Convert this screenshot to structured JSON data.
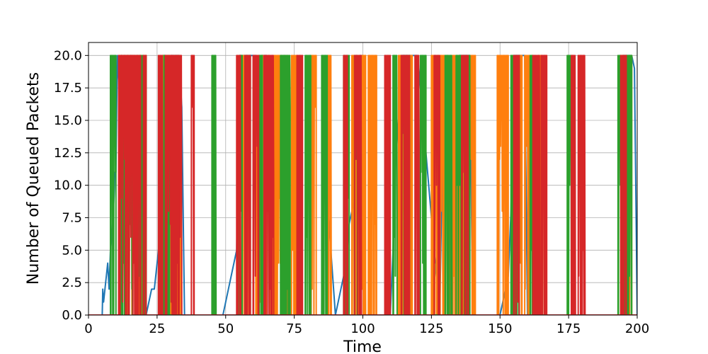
{
  "chart_data": {
    "type": "line",
    "title": "",
    "xlabel": "Time",
    "ylabel": "Number of Queued Packets",
    "xlim": [
      0,
      200
    ],
    "ylim": [
      0,
      21
    ],
    "xticks": [
      0,
      25,
      50,
      75,
      100,
      125,
      150,
      175,
      200
    ],
    "yticks": [
      0.0,
      2.5,
      5.0,
      7.5,
      10.0,
      12.5,
      15.0,
      17.5,
      20.0
    ],
    "xtick_labels": [
      "0",
      "25",
      "50",
      "75",
      "100",
      "125",
      "150",
      "175",
      "200"
    ],
    "ytick_labels": [
      "0.0",
      "2.5",
      "5.0",
      "7.5",
      "10.0",
      "12.5",
      "15.0",
      "17.5",
      "20.0"
    ],
    "grid": true,
    "legend": "none",
    "series": [
      {
        "color": "#1f77b4",
        "x": [
          0,
          5,
          5.2,
          5.5,
          6,
          7,
          7.5,
          8,
          8.5,
          9,
          9.3,
          9.6,
          10,
          10.5,
          11,
          12,
          13,
          14,
          15,
          16,
          17,
          18,
          19,
          20,
          21,
          22,
          23,
          24,
          25,
          25.5,
          26,
          27,
          28,
          29,
          30,
          31,
          32,
          33,
          34,
          35,
          49,
          50,
          51,
          52,
          53,
          54,
          55,
          56,
          57,
          58,
          59,
          60,
          61,
          62,
          63,
          64,
          65,
          66,
          67,
          67.5,
          68,
          85,
          85.3,
          86,
          90,
          91,
          92,
          93,
          94,
          95,
          96,
          97,
          98,
          99,
          100,
          101,
          110,
          111,
          112,
          113,
          114,
          115,
          116,
          117,
          118,
          119,
          120,
          128,
          129,
          130,
          131,
          132,
          133,
          134,
          135,
          136,
          137,
          138,
          139,
          140,
          150,
          151,
          152,
          153,
          154,
          155,
          156,
          157,
          158,
          159,
          160,
          194,
          195,
          196,
          197,
          198,
          199,
          200
        ],
        "y": [
          0,
          0,
          2,
          1,
          2,
          4,
          2,
          5,
          6,
          8,
          9,
          11,
          11,
          20,
          18,
          20,
          15,
          20,
          18,
          20,
          12,
          20,
          0,
          0,
          0,
          1,
          2,
          2,
          4,
          5,
          6,
          20,
          20,
          18,
          20,
          20,
          20,
          20,
          16,
          0,
          0,
          1,
          2,
          3,
          4,
          5,
          20,
          20,
          20,
          20,
          20,
          20,
          20,
          16,
          20,
          20,
          20,
          10,
          11,
          9,
          0,
          0,
          13,
          12,
          0,
          1,
          2,
          3,
          4,
          7,
          8,
          9,
          10,
          20,
          20,
          0,
          0,
          5,
          12,
          15,
          20,
          20,
          20,
          20,
          20,
          20,
          20,
          0,
          12,
          13,
          16,
          17,
          18,
          19,
          20,
          20,
          20,
          20,
          20,
          0,
          0,
          1,
          2,
          3,
          8,
          20,
          20,
          20,
          20,
          20,
          0,
          0,
          20,
          20,
          20,
          20,
          19,
          0
        ]
      },
      {
        "color": "#ff7f0e",
        "bursts": [
          [
            11,
            17
          ],
          [
            18,
            21
          ],
          [
            27,
            33.5
          ],
          [
            55,
            58
          ],
          [
            61,
            66
          ],
          [
            67,
            72.5
          ],
          [
            74,
            77
          ],
          [
            81,
            83
          ],
          [
            87,
            88.5
          ],
          [
            96,
            101
          ],
          [
            102,
            105
          ],
          [
            113,
            118
          ],
          [
            125,
            131
          ],
          [
            132,
            137
          ],
          [
            138,
            141
          ],
          [
            149,
            153
          ],
          [
            157,
            158
          ],
          [
            159,
            162
          ],
          [
            164,
            167
          ],
          [
            194,
            198
          ]
        ],
        "baseline": 0
      },
      {
        "color": "#2ca02c",
        "bursts": [
          [
            8,
            10
          ],
          [
            12,
            16
          ],
          [
            17,
            19
          ],
          [
            19,
            21
          ],
          [
            27.5,
            29.5
          ],
          [
            45,
            46.5
          ],
          [
            55,
            56
          ],
          [
            57,
            59
          ],
          [
            62,
            63.5
          ],
          [
            70,
            73.5
          ],
          [
            79,
            81
          ],
          [
            85,
            87
          ],
          [
            93,
            95
          ],
          [
            97,
            98
          ],
          [
            111,
            112.5
          ],
          [
            115,
            117
          ],
          [
            121,
            123
          ],
          [
            130,
            132.5
          ],
          [
            134,
            136
          ],
          [
            137,
            139
          ],
          [
            154,
            157
          ],
          [
            161,
            162.5
          ],
          [
            174.5,
            176.5
          ],
          [
            193,
            195.5
          ],
          [
            196,
            198
          ]
        ],
        "baseline": 0
      },
      {
        "color": "#d62728",
        "bursts": [
          [
            11,
            19
          ],
          [
            20,
            21
          ],
          [
            25.5,
            27
          ],
          [
            28,
            31
          ],
          [
            31.5,
            34
          ],
          [
            37.5,
            38.5
          ],
          [
            54,
            55.5
          ],
          [
            57,
            59
          ],
          [
            60,
            62
          ],
          [
            64,
            67.5
          ],
          [
            76,
            78
          ],
          [
            93,
            94.5
          ],
          [
            97,
            99.5
          ],
          [
            108,
            110
          ],
          [
            114,
            117
          ],
          [
            119,
            120.5
          ],
          [
            126,
            128
          ],
          [
            136,
            138.5
          ],
          [
            155,
            157
          ],
          [
            162,
            164.5
          ],
          [
            165,
            167
          ],
          [
            176,
            177.5
          ],
          [
            178.5,
            181
          ],
          [
            194,
            196
          ]
        ],
        "baseline": 0
      }
    ]
  }
}
